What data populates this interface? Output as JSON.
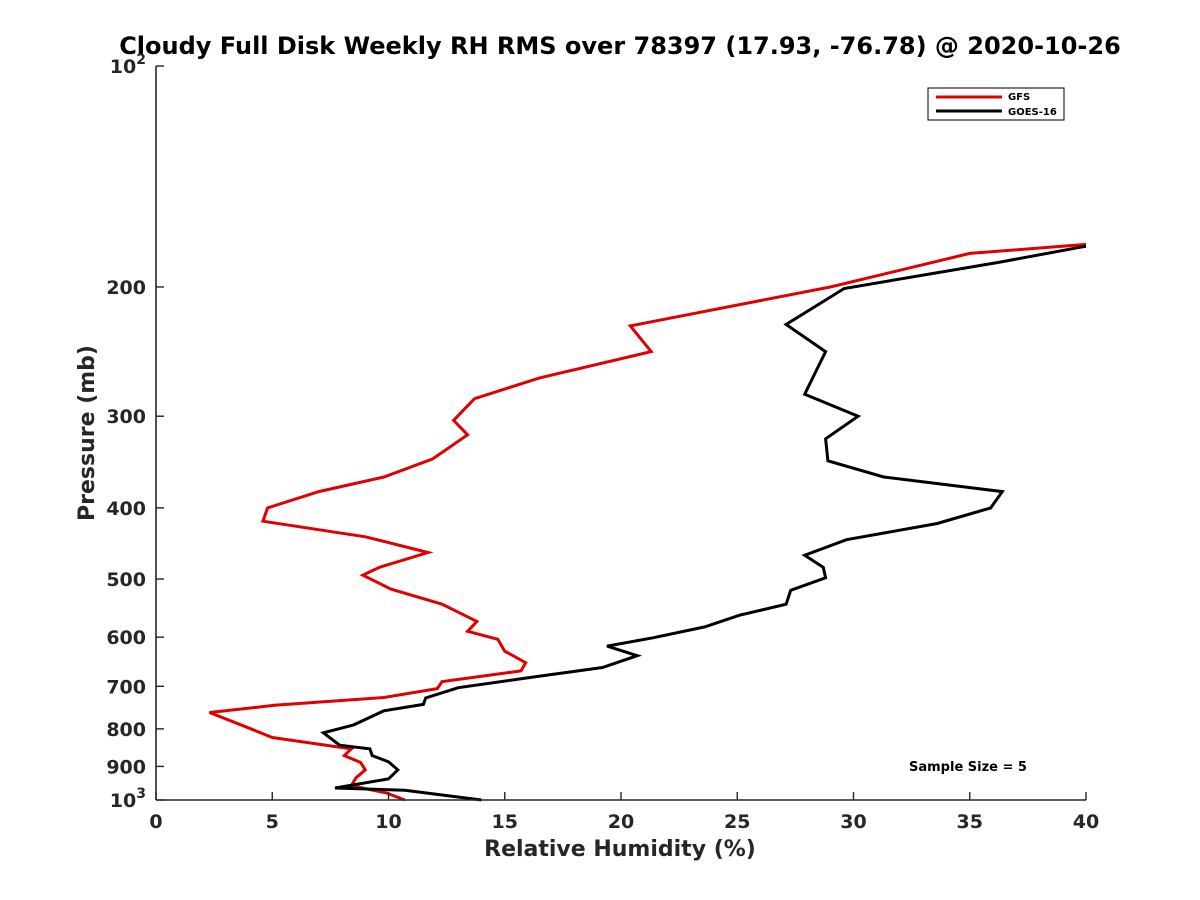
{
  "chart_data": {
    "type": "line",
    "title": "Cloudy Full Disk Weekly RH RMS over 78397 (17.93, -76.78) @ 2020-10-26",
    "xlabel": "Relative Humidity (%)",
    "ylabel": "Pressure (mb)",
    "xlim": [
      0,
      40
    ],
    "ylim": [
      100,
      1000
    ],
    "y_scale": "log",
    "y_reversed": true,
    "x_ticks": [
      {
        "value": 0,
        "label": "0"
      },
      {
        "value": 5,
        "label": "5"
      },
      {
        "value": 10,
        "label": "10"
      },
      {
        "value": 15,
        "label": "15"
      },
      {
        "value": 20,
        "label": "20"
      },
      {
        "value": 25,
        "label": "25"
      },
      {
        "value": 30,
        "label": "30"
      },
      {
        "value": 35,
        "label": "35"
      },
      {
        "value": 40,
        "label": "40"
      }
    ],
    "y_ticks": [
      {
        "value": 100,
        "base": "10",
        "exp": "2"
      },
      {
        "value": 200,
        "label": "200"
      },
      {
        "value": 300,
        "label": "300"
      },
      {
        "value": 400,
        "label": "400"
      },
      {
        "value": 500,
        "label": "500"
      },
      {
        "value": 600,
        "label": "600"
      },
      {
        "value": 700,
        "label": "700"
      },
      {
        "value": 800,
        "label": "800"
      },
      {
        "value": 900,
        "label": "900"
      },
      {
        "value": 1000,
        "base": "10",
        "exp": "3"
      }
    ],
    "legend_position": "top-right",
    "grid": false,
    "annotation": "Sample Size = 5",
    "series": [
      {
        "name": "GFS",
        "color": "#e00000",
        "points": [
          [
            40.0,
            175
          ],
          [
            35.0,
            180
          ],
          [
            29.0,
            200
          ],
          [
            20.4,
            226
          ],
          [
            21.3,
            245
          ],
          [
            16.5,
            266
          ],
          [
            13.7,
            284
          ],
          [
            12.8,
            304
          ],
          [
            13.4,
            318
          ],
          [
            11.9,
            343
          ],
          [
            9.8,
            363
          ],
          [
            7.0,
            380
          ],
          [
            4.8,
            400
          ],
          [
            4.6,
            417
          ],
          [
            9.0,
            438
          ],
          [
            11.7,
            460
          ],
          [
            9.6,
            482
          ],
          [
            8.9,
            494
          ],
          [
            10.1,
            516
          ],
          [
            12.3,
            541
          ],
          [
            13.8,
            571
          ],
          [
            13.4,
            589
          ],
          [
            14.7,
            604
          ],
          [
            15.0,
            627
          ],
          [
            15.9,
            650
          ],
          [
            15.7,
            667
          ],
          [
            12.3,
            690
          ],
          [
            12.1,
            705
          ],
          [
            9.8,
            725
          ],
          [
            5.1,
            743
          ],
          [
            2.3,
            760
          ],
          [
            3.7,
            791
          ],
          [
            5.0,
            822
          ],
          [
            8.4,
            852
          ],
          [
            8.1,
            870
          ],
          [
            8.8,
            889
          ],
          [
            9.0,
            910
          ],
          [
            8.6,
            933
          ],
          [
            8.4,
            956
          ],
          [
            9.9,
            978
          ],
          [
            10.7,
            1000
          ]
        ]
      },
      {
        "name": "GOES-16",
        "color": "#000000",
        "points": [
          [
            40.0,
            176
          ],
          [
            36.3,
            185
          ],
          [
            29.6,
            201
          ],
          [
            27.1,
            225
          ],
          [
            28.8,
            245
          ],
          [
            27.9,
            280
          ],
          [
            30.2,
            300
          ],
          [
            28.8,
            322
          ],
          [
            28.9,
            345
          ],
          [
            31.3,
            363
          ],
          [
            36.4,
            380
          ],
          [
            35.9,
            400
          ],
          [
            33.6,
            420
          ],
          [
            29.7,
            442
          ],
          [
            27.9,
            464
          ],
          [
            28.7,
            482
          ],
          [
            28.8,
            498
          ],
          [
            27.3,
            518
          ],
          [
            27.1,
            541
          ],
          [
            25.1,
            560
          ],
          [
            23.6,
            581
          ],
          [
            21.4,
            601
          ],
          [
            19.4,
            617
          ],
          [
            20.7,
            636
          ],
          [
            19.2,
            660
          ],
          [
            16.2,
            680
          ],
          [
            13.0,
            703
          ],
          [
            11.6,
            726
          ],
          [
            11.5,
            741
          ],
          [
            9.8,
            756
          ],
          [
            8.5,
            790
          ],
          [
            7.2,
            810
          ],
          [
            7.9,
            842
          ],
          [
            9.2,
            852
          ],
          [
            9.3,
            870
          ],
          [
            10.0,
            887
          ],
          [
            10.4,
            910
          ],
          [
            10.0,
            936
          ],
          [
            7.7,
            963
          ],
          [
            10.7,
            970
          ],
          [
            14.0,
            1000
          ]
        ]
      }
    ]
  }
}
